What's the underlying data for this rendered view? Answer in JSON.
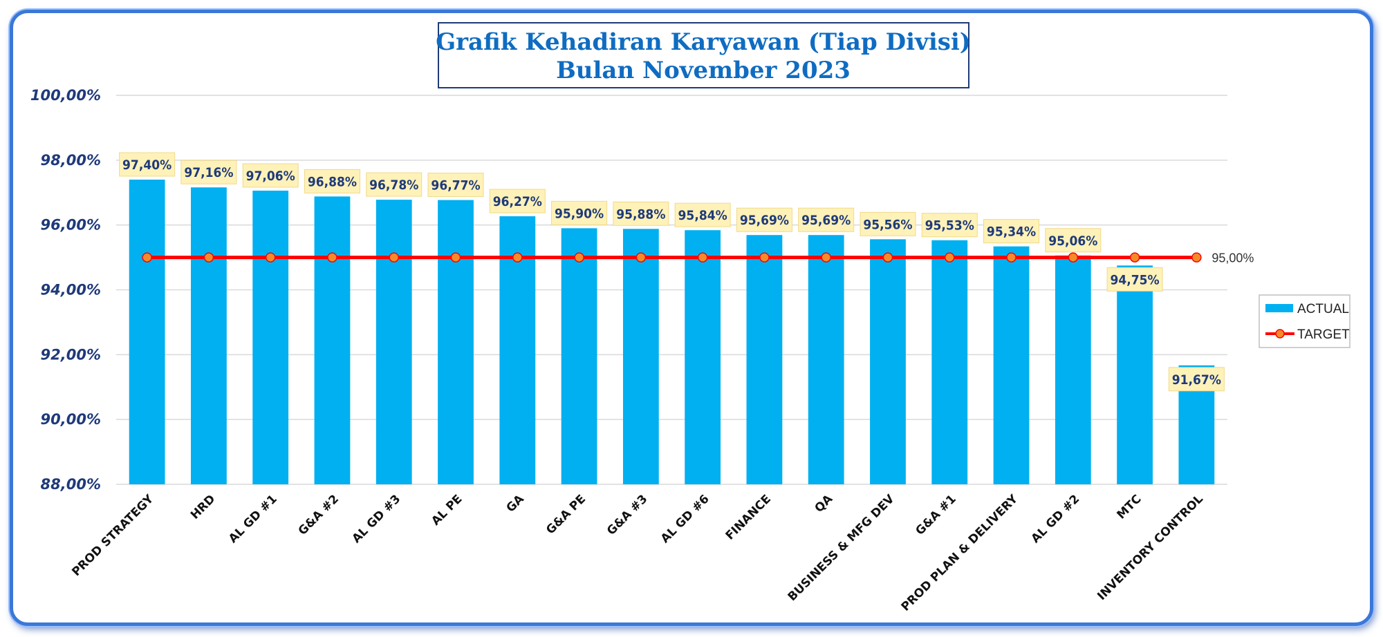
{
  "chart_data": {
    "type": "bar",
    "title": [
      "Grafik Kehadiran Karyawan (Tiap Divisi)",
      "Bulan November 2023"
    ],
    "categories": [
      "PROD STRATEGY",
      "HRD",
      "AL GD #1",
      "G&A #2",
      "AL GD #3",
      "AL PE",
      "GA",
      "G&A PE",
      "G&A #3",
      "AL GD #6",
      "FINANCE",
      "QA",
      "BUSINESS & MFG DEV",
      "G&A #1",
      "PROD PLAN & DELIVERY",
      "AL GD #2",
      "MTC",
      "INVENTORY CONTROL"
    ],
    "series": [
      {
        "name": "ACTUAL",
        "type": "bar",
        "color": "#00b0f0",
        "values": [
          97.4,
          97.16,
          97.06,
          96.88,
          96.78,
          96.77,
          96.27,
          95.9,
          95.88,
          95.84,
          95.69,
          95.69,
          95.56,
          95.53,
          95.34,
          95.06,
          94.75,
          91.67
        ],
        "labels": [
          "97,40%",
          "97,16%",
          "97,06%",
          "96,88%",
          "96,78%",
          "96,77%",
          "96,27%",
          "95,90%",
          "95,88%",
          "95,84%",
          "95,69%",
          "95,69%",
          "95,56%",
          "95,53%",
          "95,34%",
          "95,06%",
          "94,75%",
          "91,67%"
        ]
      },
      {
        "name": "TARGET",
        "type": "line",
        "color": "#ff0000",
        "marker_color": "#f58a2a",
        "values": [
          95,
          95,
          95,
          95,
          95,
          95,
          95,
          95,
          95,
          95,
          95,
          95,
          95,
          95,
          95,
          95,
          95,
          95
        ],
        "end_label": "95,00%"
      }
    ],
    "ylim": [
      88,
      100
    ],
    "yticks": [
      88,
      90,
      92,
      94,
      96,
      98,
      100
    ],
    "ytick_labels": [
      "88,00%",
      "90,00%",
      "92,00%",
      "94,00%",
      "96,00%",
      "98,00%",
      "100,00%"
    ],
    "grid": true,
    "legend": "right"
  }
}
